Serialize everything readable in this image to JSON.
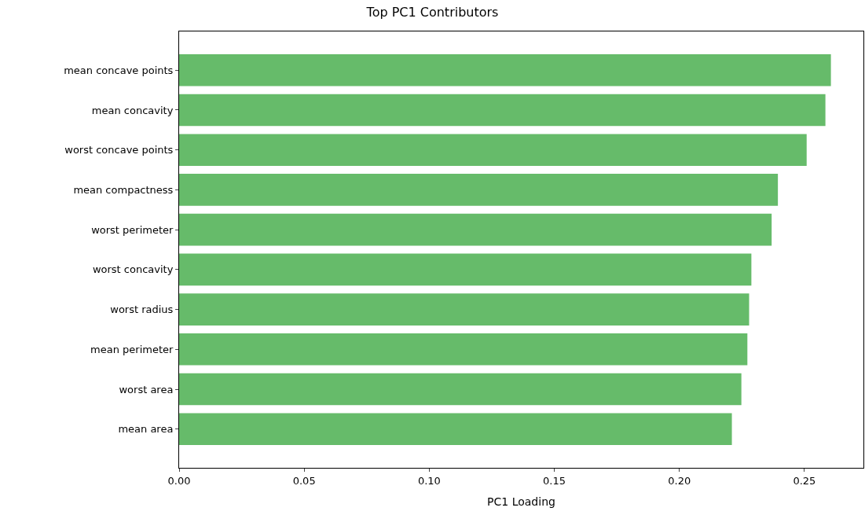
{
  "chart_data": {
    "type": "bar",
    "orientation": "horizontal",
    "title": "Top PC1 Contributors",
    "xlabel": "PC1 Loading",
    "categories": [
      "mean concave points",
      "mean concavity",
      "worst concave points",
      "mean compactness",
      "worst perimeter",
      "worst concavity",
      "worst radius",
      "mean perimeter",
      "worst area",
      "mean area"
    ],
    "values": [
      0.2606,
      0.2584,
      0.2509,
      0.2394,
      0.2369,
      0.2288,
      0.2279,
      0.2272,
      0.2248,
      0.221
    ],
    "color": "#66bb6a",
    "xlim": [
      0,
      0.2736
    ],
    "xticks": [
      {
        "value": 0,
        "label": "0.00"
      },
      {
        "value": 0.05,
        "label": "0.05"
      },
      {
        "value": 0.1,
        "label": "0.10"
      },
      {
        "value": 0.15,
        "label": "0.15"
      },
      {
        "value": 0.2,
        "label": "0.20"
      },
      {
        "value": 0.25,
        "label": "0.25"
      }
    ]
  }
}
